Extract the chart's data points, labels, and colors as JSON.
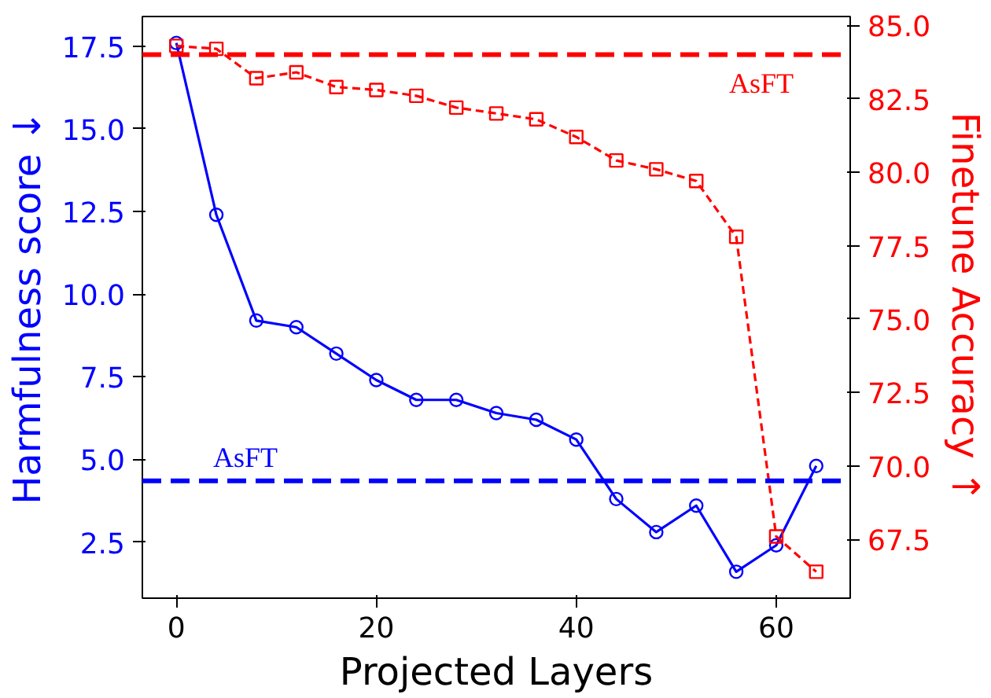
{
  "chart_data": {
    "type": "line",
    "xlabel": "Projected Layers",
    "ylabel": "Harmfulness score ↓",
    "y2label": "Finetune Accuracy ↑",
    "xlim": [
      -3.4,
      67.4
    ],
    "xticks": [
      0,
      20,
      40,
      60
    ],
    "ylim": [
      0.8,
      18.4
    ],
    "yticks": [
      {
        "value": 2.5,
        "label": "2.5"
      },
      {
        "value": 5,
        "label": "5.0"
      },
      {
        "value": 7.5,
        "label": "7.5"
      },
      {
        "value": 10,
        "label": "10.0"
      },
      {
        "value": 12.5,
        "label": "12.5"
      },
      {
        "value": 15,
        "label": "15.0"
      },
      {
        "value": 17.5,
        "label": "17.5"
      }
    ],
    "y2lim": [
      65.5,
      85.3
    ],
    "y2ticks": [
      67.5,
      {
        "value": 70,
        "label": "70.0"
      },
      72.5,
      {
        "value": 75,
        "label": "75.0"
      },
      77.5,
      {
        "value": 80,
        "label": "80.0"
      },
      82.5,
      {
        "value": 85,
        "label": "85.0"
      }
    ],
    "x": [
      0,
      4,
      8,
      12,
      16,
      20,
      24,
      28,
      32,
      36,
      40,
      44,
      48,
      52,
      56,
      60,
      64
    ],
    "series": [
      {
        "color": "#0000ff",
        "marker": "circle",
        "line_style": "solid",
        "values": [
          17.6,
          12.4,
          9.2,
          9.0,
          8.2,
          7.4,
          6.8,
          6.8,
          6.4,
          6.2,
          5.6,
          3.8,
          2.8,
          3.6,
          1.6,
          2.4,
          4.8
        ]
      },
      {
        "color": "#ff0000",
        "marker": "square",
        "line_style": "dashed",
        "axis": "y2",
        "values": [
          84.3,
          84.2,
          83.2,
          83.4,
          82.9,
          82.8,
          82.6,
          82.2,
          82.0,
          81.8,
          81.2,
          80.4,
          80.1,
          79.7,
          77.8,
          67.6,
          66.4
        ]
      }
    ],
    "ref_lines": [
      {
        "axis": "y",
        "value": 4.35,
        "label": "AsFT",
        "color": "#0000ff",
        "line_style": "dashed"
      },
      {
        "axis": "y2",
        "value": 84.0,
        "label": "AsFT",
        "color": "#ff0000",
        "line_style": "dashed"
      }
    ]
  }
}
